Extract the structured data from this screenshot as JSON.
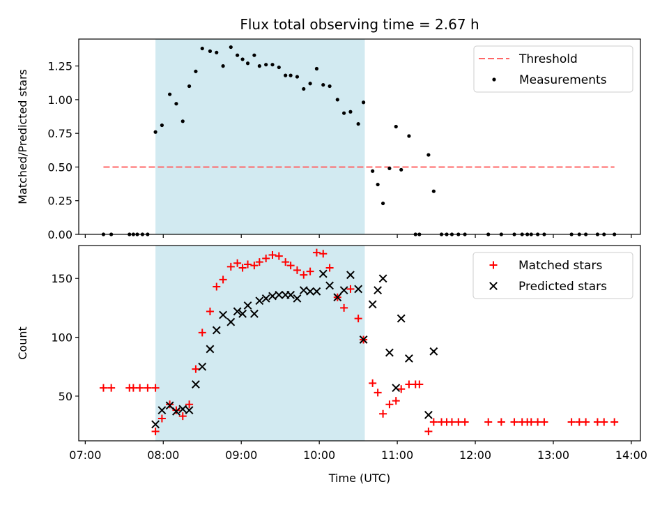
{
  "chart_data": [
    {
      "type": "scatter",
      "title": "Flux total observing time = 2.67 h",
      "xlabel": "",
      "ylabel": "Matched/Predicted stars",
      "xlim": [
        "06:55",
        "14:07"
      ],
      "ylim": [
        0,
        1.45
      ],
      "yticks": [
        "0.00",
        "0.25",
        "0.50",
        "0.75",
        "1.00",
        "1.25"
      ],
      "xticks": [
        "07:00",
        "08:00",
        "09:00",
        "10:00",
        "11:00",
        "12:00",
        "13:00",
        "14:00"
      ],
      "shaded_span": {
        "start": "07:54",
        "end": "10:35",
        "color": "#add8e6"
      },
      "threshold": {
        "name": "Threshold",
        "value": 0.5,
        "x": [
          "07:14",
          "13:47"
        ],
        "color": "#ff6666",
        "style": "dashed"
      },
      "legend": [
        "Threshold",
        "Measurements"
      ],
      "legend_placement": "top-right",
      "series": [
        {
          "name": "Measurements",
          "color": "#000000",
          "marker": "dot",
          "points": [
            [
              "07:14",
              0.0
            ],
            [
              "07:20",
              0.0
            ],
            [
              "07:34",
              0.0
            ],
            [
              "07:37",
              0.0
            ],
            [
              "07:40",
              0.0
            ],
            [
              "07:44",
              0.0
            ],
            [
              "07:48",
              0.0
            ],
            [
              "07:54",
              0.76
            ],
            [
              "07:59",
              0.81
            ],
            [
              "08:05",
              1.04
            ],
            [
              "08:10",
              0.97
            ],
            [
              "08:15",
              0.84
            ],
            [
              "08:20",
              1.1
            ],
            [
              "08:25",
              1.21
            ],
            [
              "08:30",
              1.38
            ],
            [
              "08:36",
              1.36
            ],
            [
              "08:41",
              1.35
            ],
            [
              "08:46",
              1.25
            ],
            [
              "08:52",
              1.39
            ],
            [
              "08:57",
              1.33
            ],
            [
              "09:01",
              1.3
            ],
            [
              "09:05",
              1.27
            ],
            [
              "09:10",
              1.33
            ],
            [
              "09:14",
              1.25
            ],
            [
              "09:19",
              1.26
            ],
            [
              "09:24",
              1.26
            ],
            [
              "09:29",
              1.24
            ],
            [
              "09:34",
              1.18
            ],
            [
              "09:38",
              1.18
            ],
            [
              "09:43",
              1.17
            ],
            [
              "09:48",
              1.08
            ],
            [
              "09:53",
              1.12
            ],
            [
              "09:58",
              1.23
            ],
            [
              "10:03",
              1.11
            ],
            [
              "10:08",
              1.1
            ],
            [
              "10:14",
              1.0
            ],
            [
              "10:19",
              0.9
            ],
            [
              "10:24",
              0.91
            ],
            [
              "10:30",
              0.82
            ],
            [
              "10:34",
              0.98
            ],
            [
              "10:41",
              0.47
            ],
            [
              "10:45",
              0.37
            ],
            [
              "10:49",
              0.23
            ],
            [
              "10:54",
              0.49
            ],
            [
              "10:59",
              0.8
            ],
            [
              "11:03",
              0.48
            ],
            [
              "11:09",
              0.73
            ],
            [
              "11:14",
              0.0
            ],
            [
              "11:17",
              0.0
            ],
            [
              "11:24",
              0.59
            ],
            [
              "11:28",
              0.32
            ],
            [
              "11:34",
              0.0
            ],
            [
              "11:38",
              0.0
            ],
            [
              "11:42",
              0.0
            ],
            [
              "11:47",
              0.0
            ],
            [
              "11:52",
              0.0
            ],
            [
              "12:10",
              0.0
            ],
            [
              "12:20",
              0.0
            ],
            [
              "12:30",
              0.0
            ],
            [
              "12:36",
              0.0
            ],
            [
              "12:40",
              0.0
            ],
            [
              "12:43",
              0.0
            ],
            [
              "12:48",
              0.0
            ],
            [
              "12:53",
              0.0
            ],
            [
              "13:14",
              0.0
            ],
            [
              "13:20",
              0.0
            ],
            [
              "13:25",
              0.0
            ],
            [
              "13:34",
              0.0
            ],
            [
              "13:39",
              0.0
            ],
            [
              "13:47",
              0.0
            ]
          ]
        }
      ]
    },
    {
      "type": "scatter",
      "title": "",
      "xlabel": "Time (UTC)",
      "ylabel": "Count",
      "xlim": [
        "06:55",
        "14:07"
      ],
      "ylim": [
        12,
        178
      ],
      "yticks": [
        "50",
        "100",
        "150"
      ],
      "xticks": [
        "07:00",
        "08:00",
        "09:00",
        "10:00",
        "11:00",
        "12:00",
        "13:00",
        "14:00"
      ],
      "shaded_span": {
        "start": "07:54",
        "end": "10:35",
        "color": "#add8e6"
      },
      "legend": [
        "Matched stars",
        "Predicted stars"
      ],
      "legend_placement": "top-right",
      "series": [
        {
          "name": "Matched stars",
          "color": "#ff0000",
          "marker": "plus",
          "points": [
            [
              "07:14",
              57
            ],
            [
              "07:20",
              57
            ],
            [
              "07:34",
              57
            ],
            [
              "07:37",
              57
            ],
            [
              "07:42",
              57
            ],
            [
              "07:48",
              57
            ],
            [
              "07:54",
              57
            ],
            [
              "07:54",
              20
            ],
            [
              "07:59",
              31
            ],
            [
              "08:05",
              43
            ],
            [
              "08:10",
              38
            ],
            [
              "08:15",
              33
            ],
            [
              "08:20",
              43
            ],
            [
              "08:25",
              73
            ],
            [
              "08:30",
              104
            ],
            [
              "08:36",
              122
            ],
            [
              "08:41",
              143
            ],
            [
              "08:46",
              149
            ],
            [
              "08:52",
              160
            ],
            [
              "08:57",
              163
            ],
            [
              "09:01",
              159
            ],
            [
              "09:05",
              162
            ],
            [
              "09:10",
              161
            ],
            [
              "09:14",
              164
            ],
            [
              "09:19",
              167
            ],
            [
              "09:24",
              170
            ],
            [
              "09:29",
              169
            ],
            [
              "09:34",
              164
            ],
            [
              "09:38",
              161
            ],
            [
              "09:43",
              157
            ],
            [
              "09:48",
              153
            ],
            [
              "09:53",
              156
            ],
            [
              "09:58",
              172
            ],
            [
              "10:03",
              171
            ],
            [
              "10:08",
              159
            ],
            [
              "10:14",
              134
            ],
            [
              "10:19",
              125
            ],
            [
              "10:24",
              141
            ],
            [
              "10:30",
              116
            ],
            [
              "10:34",
              98
            ],
            [
              "10:41",
              61
            ],
            [
              "10:45",
              53
            ],
            [
              "10:49",
              35
            ],
            [
              "10:54",
              43
            ],
            [
              "10:59",
              46
            ],
            [
              "11:03",
              56
            ],
            [
              "11:09",
              60
            ],
            [
              "11:14",
              60
            ],
            [
              "11:17",
              60
            ],
            [
              "11:24",
              20
            ],
            [
              "11:28",
              28
            ],
            [
              "11:34",
              28
            ],
            [
              "11:38",
              28
            ],
            [
              "11:42",
              28
            ],
            [
              "11:47",
              28
            ],
            [
              "11:52",
              28
            ],
            [
              "12:10",
              28
            ],
            [
              "12:20",
              28
            ],
            [
              "12:30",
              28
            ],
            [
              "12:36",
              28
            ],
            [
              "12:40",
              28
            ],
            [
              "12:43",
              28
            ],
            [
              "12:48",
              28
            ],
            [
              "12:53",
              28
            ],
            [
              "13:14",
              28
            ],
            [
              "13:20",
              28
            ],
            [
              "13:25",
              28
            ],
            [
              "13:34",
              28
            ],
            [
              "13:39",
              28
            ],
            [
              "13:47",
              28
            ]
          ]
        },
        {
          "name": "Predicted stars",
          "color": "#000000",
          "marker": "x",
          "points": [
            [
              "07:54",
              26
            ],
            [
              "07:59",
              38
            ],
            [
              "08:05",
              42
            ],
            [
              "08:10",
              37
            ],
            [
              "08:15",
              39
            ],
            [
              "08:20",
              38
            ],
            [
              "08:25",
              60
            ],
            [
              "08:30",
              75
            ],
            [
              "08:36",
              90
            ],
            [
              "08:41",
              106
            ],
            [
              "08:46",
              119
            ],
            [
              "08:52",
              113
            ],
            [
              "08:57",
              122
            ],
            [
              "09:01",
              120
            ],
            [
              "09:05",
              127
            ],
            [
              "09:10",
              120
            ],
            [
              "09:14",
              131
            ],
            [
              "09:19",
              133
            ],
            [
              "09:24",
              135
            ],
            [
              "09:29",
              136
            ],
            [
              "09:34",
              136
            ],
            [
              "09:38",
              136
            ],
            [
              "09:43",
              133
            ],
            [
              "09:48",
              140
            ],
            [
              "09:53",
              139
            ],
            [
              "09:58",
              139
            ],
            [
              "10:03",
              154
            ],
            [
              "10:08",
              144
            ],
            [
              "10:14",
              134
            ],
            [
              "10:19",
              140
            ],
            [
              "10:24",
              153
            ],
            [
              "10:30",
              141
            ],
            [
              "10:34",
              98
            ],
            [
              "10:41",
              128
            ],
            [
              "10:45",
              140
            ],
            [
              "10:49",
              150
            ],
            [
              "10:54",
              87
            ],
            [
              "10:59",
              57
            ],
            [
              "11:03",
              116
            ],
            [
              "11:09",
              82
            ],
            [
              "11:24",
              34
            ],
            [
              "11:28",
              88
            ]
          ]
        }
      ]
    }
  ]
}
